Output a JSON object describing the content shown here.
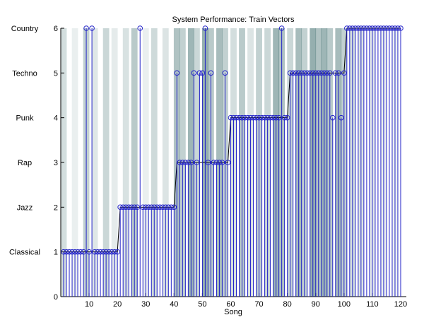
{
  "chart_data": {
    "type": "line",
    "title": "System Performance: Train Vectors",
    "xlabel": "Song",
    "ylabel": "",
    "xlim": [
      0,
      122
    ],
    "ylim": [
      0,
      6
    ],
    "x_ticks": [
      10,
      20,
      30,
      40,
      50,
      60,
      70,
      80,
      90,
      100,
      110,
      120
    ],
    "y_ticks": [
      0,
      1,
      2,
      3,
      4,
      5,
      6
    ],
    "y_ticks_numeric_labels": [
      "0",
      "1",
      "2",
      "3",
      "4",
      "5",
      "6"
    ],
    "y_category_labels": [
      {
        "value": 1,
        "label": "Classical"
      },
      {
        "value": 2,
        "label": "Jazz"
      },
      {
        "value": 3,
        "label": "Rap"
      },
      {
        "value": 4,
        "label": "Punk"
      },
      {
        "value": 5,
        "label": "Techno"
      },
      {
        "value": 6,
        "label": "Country"
      }
    ],
    "series": [
      {
        "style": "step-line",
        "color": "#000000",
        "x": [
          1,
          2,
          3,
          4,
          5,
          6,
          7,
          8,
          9,
          10,
          11,
          12,
          13,
          14,
          15,
          16,
          17,
          18,
          19,
          20,
          21,
          22,
          23,
          24,
          25,
          26,
          27,
          28,
          29,
          30,
          31,
          32,
          33,
          34,
          35,
          36,
          37,
          38,
          39,
          40,
          41,
          42,
          43,
          44,
          45,
          46,
          47,
          48,
          49,
          50,
          51,
          52,
          53,
          54,
          55,
          56,
          57,
          58,
          59,
          60,
          61,
          62,
          63,
          64,
          65,
          66,
          67,
          68,
          69,
          70,
          71,
          72,
          73,
          74,
          75,
          76,
          77,
          78,
          79,
          80,
          81,
          82,
          83,
          84,
          85,
          86,
          87,
          88,
          89,
          90,
          91,
          92,
          93,
          94,
          95,
          96,
          97,
          98,
          99,
          100,
          101,
          102,
          103,
          104,
          105,
          106,
          107,
          108,
          109,
          110,
          111,
          112,
          113,
          114,
          115,
          116,
          117,
          118,
          119,
          120
        ],
        "values": [
          1,
          1,
          1,
          1,
          1,
          1,
          1,
          1,
          1,
          1,
          1,
          1,
          1,
          1,
          1,
          1,
          1,
          1,
          1,
          1,
          2,
          2,
          2,
          2,
          2,
          2,
          2,
          2,
          2,
          2,
          2,
          2,
          2,
          2,
          2,
          2,
          2,
          2,
          2,
          2,
          3,
          3,
          3,
          3,
          3,
          3,
          3,
          3,
          3,
          3,
          3,
          3,
          3,
          3,
          3,
          3,
          3,
          3,
          3,
          4,
          4,
          4,
          4,
          4,
          4,
          4,
          4,
          4,
          4,
          4,
          4,
          4,
          4,
          4,
          4,
          4,
          4,
          4,
          4,
          4,
          5,
          5,
          5,
          5,
          5,
          5,
          5,
          5,
          5,
          5,
          5,
          5,
          5,
          5,
          5,
          5,
          5,
          5,
          5,
          5,
          6,
          6,
          6,
          6,
          6,
          6,
          6,
          6,
          6,
          6,
          6,
          6,
          6,
          6,
          6,
          6,
          6,
          6,
          6,
          6
        ]
      },
      {
        "style": "stem",
        "color": "#2323c8",
        "marker": "circle",
        "x": [
          1,
          2,
          3,
          4,
          5,
          6,
          7,
          8,
          9,
          10,
          11,
          12,
          13,
          14,
          15,
          16,
          17,
          18,
          19,
          20,
          21,
          22,
          23,
          24,
          25,
          26,
          27,
          28,
          29,
          30,
          31,
          32,
          33,
          34,
          35,
          36,
          37,
          38,
          39,
          40,
          41,
          42,
          43,
          44,
          45,
          46,
          47,
          48,
          49,
          50,
          51,
          52,
          53,
          54,
          55,
          56,
          57,
          58,
          59,
          60,
          61,
          62,
          63,
          64,
          65,
          66,
          67,
          68,
          69,
          70,
          71,
          72,
          73,
          74,
          75,
          76,
          77,
          78,
          79,
          80,
          81,
          82,
          83,
          84,
          85,
          86,
          87,
          88,
          89,
          90,
          91,
          92,
          93,
          94,
          95,
          96,
          97,
          98,
          99,
          100,
          101,
          102,
          103,
          104,
          105,
          106,
          107,
          108,
          109,
          110,
          111,
          112,
          113,
          114,
          115,
          116,
          117,
          118,
          119,
          120
        ],
        "values": [
          1,
          1,
          1,
          1,
          1,
          1,
          1,
          1,
          6,
          1,
          6,
          1,
          1,
          1,
          1,
          1,
          1,
          1,
          1,
          1,
          2,
          2,
          2,
          2,
          2,
          2,
          2,
          6,
          2,
          2,
          2,
          2,
          2,
          2,
          2,
          2,
          2,
          2,
          2,
          2,
          5,
          3,
          3,
          3,
          3,
          3,
          5,
          3,
          5,
          5,
          6,
          3,
          5,
          3,
          3,
          3,
          3,
          5,
          3,
          4,
          4,
          4,
          4,
          4,
          4,
          4,
          4,
          4,
          4,
          4,
          4,
          4,
          4,
          4,
          4,
          4,
          4,
          6,
          4,
          4,
          5,
          5,
          5,
          5,
          5,
          5,
          5,
          5,
          5,
          5,
          5,
          5,
          5,
          5,
          5,
          4,
          5,
          5,
          4,
          5,
          6,
          6,
          6,
          6,
          6,
          6,
          6,
          6,
          6,
          6,
          6,
          6,
          6,
          6,
          6,
          6,
          6,
          6,
          6,
          6
        ]
      }
    ],
    "background_bands": [
      {
        "x": 1,
        "opacity": 0.25
      },
      {
        "x": 5,
        "opacity": 0.12
      },
      {
        "x": 9,
        "opacity": 0.35
      },
      {
        "x": 12,
        "opacity": 0.18
      },
      {
        "x": 16,
        "opacity": 0.3
      },
      {
        "x": 19,
        "opacity": 0.15
      },
      {
        "x": 23,
        "opacity": 0.22
      },
      {
        "x": 26,
        "opacity": 0.4
      },
      {
        "x": 30,
        "opacity": 0.12
      },
      {
        "x": 33,
        "opacity": 0.28
      },
      {
        "x": 37,
        "opacity": 0.2
      },
      {
        "x": 41,
        "opacity": 0.45
      },
      {
        "x": 43,
        "opacity": 0.35
      },
      {
        "x": 46,
        "opacity": 0.55
      },
      {
        "x": 48,
        "opacity": 0.3
      },
      {
        "x": 51,
        "opacity": 0.6
      },
      {
        "x": 53,
        "opacity": 0.4
      },
      {
        "x": 56,
        "opacity": 0.5
      },
      {
        "x": 58,
        "opacity": 0.35
      },
      {
        "x": 61,
        "opacity": 0.25
      },
      {
        "x": 64,
        "opacity": 0.4
      },
      {
        "x": 67,
        "opacity": 0.2
      },
      {
        "x": 70,
        "opacity": 0.35
      },
      {
        "x": 73,
        "opacity": 0.3
      },
      {
        "x": 76,
        "opacity": 0.55
      },
      {
        "x": 78,
        "opacity": 0.45
      },
      {
        "x": 81,
        "opacity": 0.3
      },
      {
        "x": 84,
        "opacity": 0.5
      },
      {
        "x": 86,
        "opacity": 0.35
      },
      {
        "x": 89,
        "opacity": 0.6
      },
      {
        "x": 91,
        "opacity": 0.45
      },
      {
        "x": 93,
        "opacity": 0.55
      },
      {
        "x": 95,
        "opacity": 0.4
      },
      {
        "x": 98,
        "opacity": 0.5
      },
      {
        "x": 100,
        "opacity": 0.35
      },
      {
        "x": 103,
        "opacity": 0.25
      },
      {
        "x": 106,
        "opacity": 0.2
      },
      {
        "x": 110,
        "opacity": 0.15
      },
      {
        "x": 114,
        "opacity": 0.12
      },
      {
        "x": 118,
        "opacity": 0.1
      }
    ],
    "colors": {
      "stem": "#2323c8",
      "step_line": "#000000",
      "band": "#4f7a7a",
      "axis": "#000000"
    },
    "grid": false,
    "legend": "none"
  }
}
